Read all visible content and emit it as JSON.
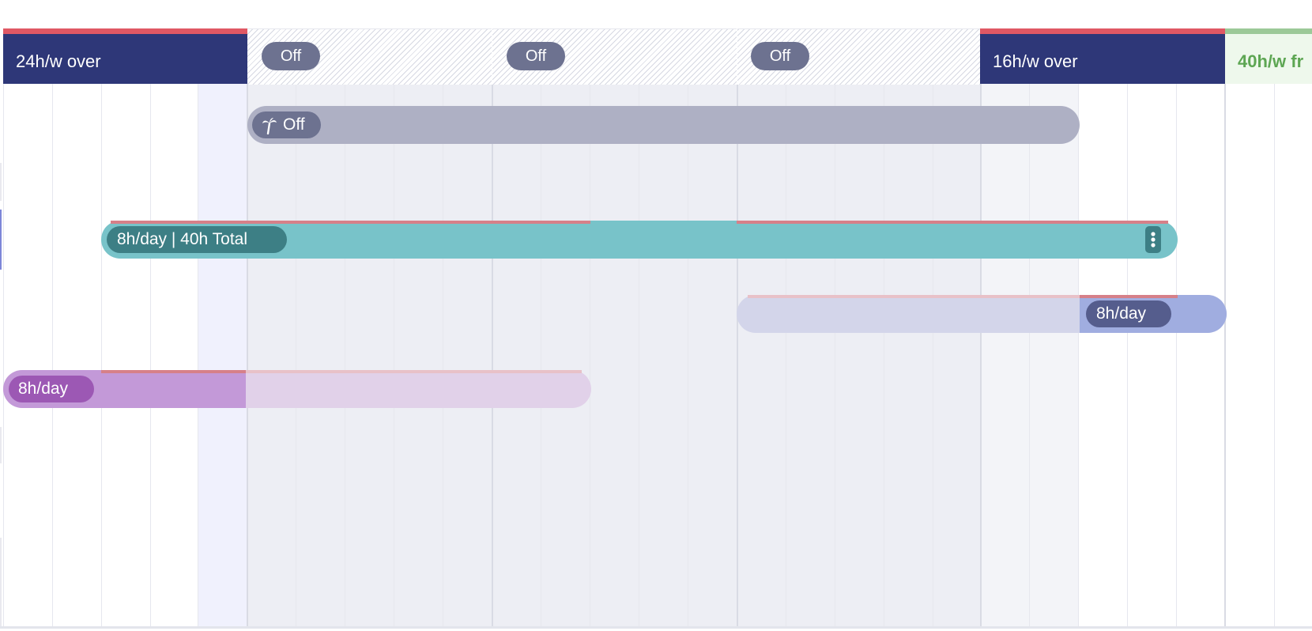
{
  "header": {
    "week1": {
      "label": "24h/w over"
    },
    "off_days": [
      "Off",
      "Off",
      "Off"
    ],
    "week3": {
      "label": "16h/w over"
    },
    "week4": {
      "label": "40h/w fr"
    }
  },
  "assignments": [
    {
      "label": "Off",
      "icon": "palm-tree-icon",
      "color": "#aeb0c4",
      "type": "time-off"
    },
    {
      "label": "8h/day | 40h Total",
      "color": "#78c3c9",
      "accent": "#3d7f85",
      "has_menu": true
    },
    {
      "label": "8h/day",
      "color": "#a0ade0",
      "accent": "#555d8d"
    },
    {
      "label": "8h/day",
      "color": "#c399d8",
      "accent": "#9c58b4"
    }
  ],
  "colors": {
    "navy": "#2e3778",
    "over_alert": "#e05864",
    "free": "#5da653",
    "off_pill": "#6d7290"
  }
}
